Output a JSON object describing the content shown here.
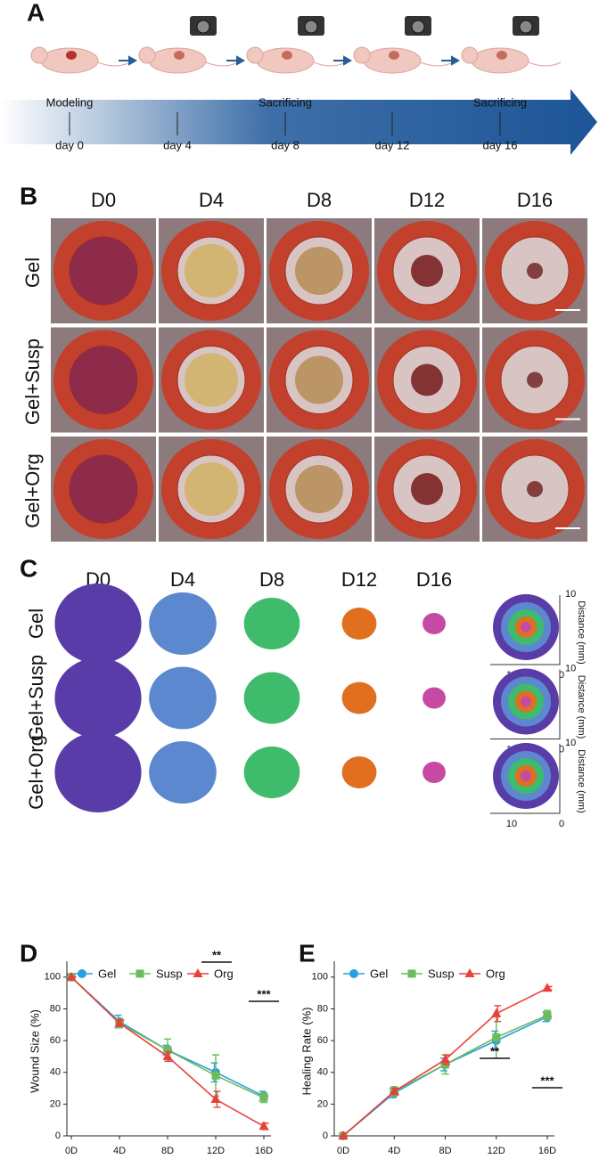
{
  "panel_a": {
    "label": "A",
    "stages": [
      "Modeling",
      "Sacrificing",
      "Sacrificing"
    ],
    "days": [
      "day 0",
      "day 4",
      "day 8",
      "day 12",
      "day 16"
    ]
  },
  "panel_b": {
    "label": "B",
    "columns": [
      "D0",
      "D4",
      "D8",
      "D12",
      "D16"
    ],
    "rows": [
      "Gel",
      "Gel+Susp",
      "Gel+Org"
    ]
  },
  "panel_c": {
    "label": "C",
    "columns": [
      "D0",
      "D4",
      "D8",
      "D12",
      "D16"
    ],
    "rows": [
      "Gel",
      "Gel+Susp",
      "Gel+Org"
    ],
    "distance_axis": {
      "top": "10",
      "left": "10",
      "origin": "0",
      "title": "Distance (mm)"
    }
  },
  "chart_data": [
    {
      "type": "line",
      "label": "D",
      "ylabel": "Wound Size (%)",
      "categories": [
        "0D",
        "4D",
        "8D",
        "12D",
        "16D"
      ],
      "ylim": [
        0,
        110
      ],
      "yticks": [
        0,
        20,
        40,
        60,
        80,
        100
      ],
      "legend": "top",
      "series": [
        {
          "name": "Gel",
          "color": "#2a9fe0",
          "marker": "circle",
          "values": [
            100,
            72,
            54,
            40,
            25
          ],
          "errors": [
            0,
            4,
            3,
            6,
            3
          ]
        },
        {
          "name": "Susp",
          "color": "#6dbb5a",
          "marker": "square",
          "values": [
            100,
            71,
            54,
            38,
            24
          ],
          "errors": [
            0,
            3,
            7,
            13,
            3
          ]
        },
        {
          "name": "Org",
          "color": "#e8413c",
          "marker": "triangle",
          "values": [
            100,
            71,
            50,
            23,
            6
          ],
          "errors": [
            0,
            2,
            3,
            5,
            2
          ]
        }
      ],
      "annotations": [
        "**",
        "***"
      ]
    },
    {
      "type": "line",
      "label": "E",
      "ylabel": "Healing Rate (%)",
      "categories": [
        "0D",
        "4D",
        "8D",
        "12D",
        "16D"
      ],
      "ylim": [
        0,
        110
      ],
      "yticks": [
        0,
        20,
        40,
        60,
        80,
        100
      ],
      "legend": "top",
      "series": [
        {
          "name": "Gel",
          "color": "#2a9fe0",
          "marker": "circle",
          "values": [
            0,
            27,
            45,
            60,
            75
          ],
          "errors": [
            0,
            3,
            4,
            6,
            3
          ]
        },
        {
          "name": "Susp",
          "color": "#6dbb5a",
          "marker": "square",
          "values": [
            0,
            28,
            45,
            62,
            76
          ],
          "errors": [
            0,
            3,
            6,
            13,
            3
          ]
        },
        {
          "name": "Org",
          "color": "#e8413c",
          "marker": "triangle",
          "values": [
            0,
            28,
            48,
            77,
            93
          ],
          "errors": [
            0,
            2,
            3,
            5,
            1
          ]
        }
      ],
      "annotations": [
        "**",
        "***"
      ]
    }
  ]
}
